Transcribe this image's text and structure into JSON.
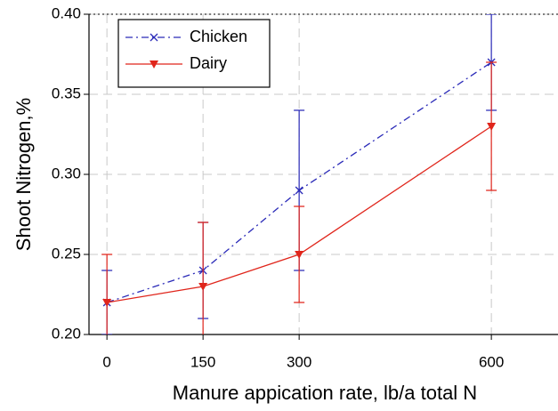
{
  "chart_data": {
    "type": "line",
    "x_label": "Manure appication rate, lb/a total N",
    "y_label": "Shoot Nitrogen,%",
    "x": [
      0,
      150,
      300,
      600
    ],
    "xlim": [
      -28,
      704
    ],
    "xticks": [
      0,
      150,
      300,
      600
    ],
    "ylim": [
      0.2,
      0.4
    ],
    "yticks": [
      {
        "value": 0.2,
        "label": "0.20"
      },
      {
        "value": 0.25,
        "label": "0.25"
      },
      {
        "value": 0.3,
        "label": "0.30"
      },
      {
        "value": 0.35,
        "label": "0.35"
      },
      {
        "value": 0.4,
        "label": "0.40"
      }
    ],
    "grid": true,
    "legend": "upper left",
    "series": [
      {
        "name": "Chicken",
        "color": "#2a2ab8",
        "dash": "dashdot",
        "marker": "x",
        "values": [
          0.22,
          0.24,
          0.29,
          0.37
        ],
        "errors": [
          0.02,
          0.03,
          0.05,
          0.03
        ]
      },
      {
        "name": "Dairy",
        "color": "#e0251b",
        "dash": "solid",
        "marker": "triangle-down",
        "values": [
          0.22,
          0.23,
          0.25,
          0.33
        ],
        "errors": [
          0.03,
          0.04,
          0.03,
          0.04
        ]
      }
    ]
  }
}
